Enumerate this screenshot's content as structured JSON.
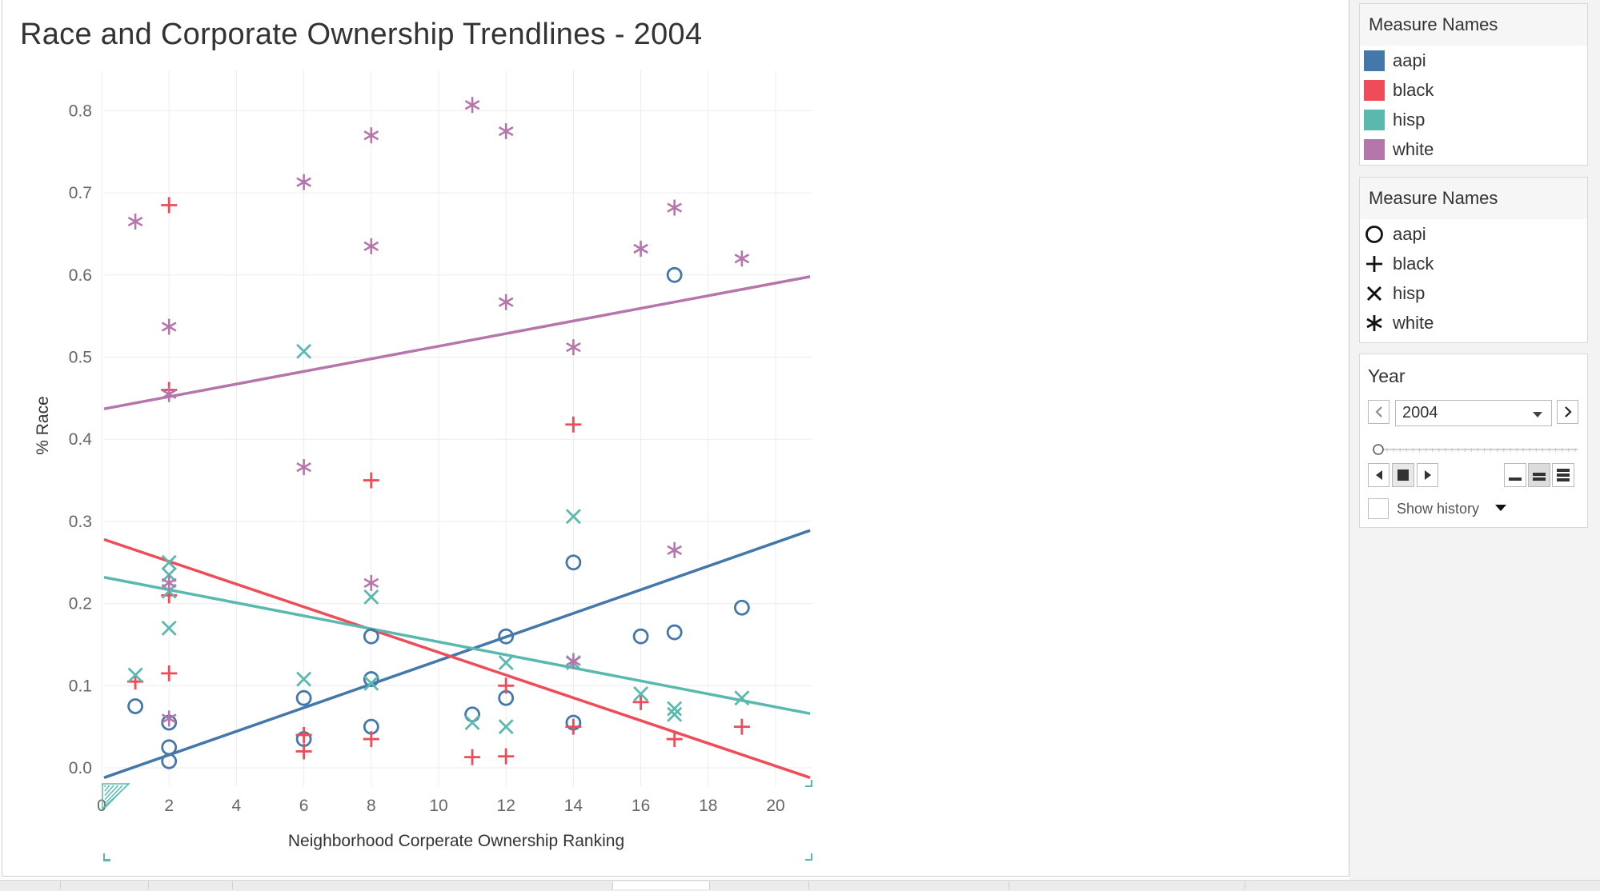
{
  "chart_data": {
    "type": "scatter",
    "title": "Race and Corporate Ownership Trendlines - 2004",
    "xlabel": "Neighborhood Corperate Ownership Ranking",
    "ylabel": "% Race",
    "xlim": [
      0,
      21
    ],
    "ylim": [
      0,
      0.85
    ],
    "xticks": [
      0,
      2,
      4,
      6,
      8,
      10,
      12,
      14,
      16,
      18,
      20
    ],
    "yticks": [
      0.0,
      0.1,
      0.2,
      0.3,
      0.4,
      0.5,
      0.6,
      0.7,
      0.8
    ],
    "xtick_labels": [
      "0",
      "2",
      "4",
      "6",
      "8",
      "10",
      "12",
      "14",
      "16",
      "18",
      "20"
    ],
    "ytick_labels": [
      "0.0",
      "0.1",
      "0.2",
      "0.3",
      "0.4",
      "0.5",
      "0.6",
      "0.7",
      "0.8"
    ],
    "grid": true,
    "series": [
      {
        "name": "aapi",
        "color": "#4477aa",
        "shape": "circle",
        "points": [
          [
            1,
            0.075
          ],
          [
            2,
            0.055
          ],
          [
            2,
            0.025
          ],
          [
            2,
            0.008
          ],
          [
            6,
            0.085
          ],
          [
            6,
            0.035
          ],
          [
            8,
            0.16
          ],
          [
            8,
            0.108
          ],
          [
            8,
            0.05
          ],
          [
            11,
            0.065
          ],
          [
            12,
            0.16
          ],
          [
            12,
            0.085
          ],
          [
            14,
            0.25
          ],
          [
            14,
            0.055
          ],
          [
            16,
            0.16
          ],
          [
            17,
            0.6
          ],
          [
            17,
            0.165
          ],
          [
            19,
            0.195
          ]
        ],
        "trend": [
          [
            0,
            -0.012
          ],
          [
            21,
            0.289
          ]
        ]
      },
      {
        "name": "black",
        "color": "#ee4c58",
        "shape": "plus",
        "points": [
          [
            1,
            0.105
          ],
          [
            2,
            0.685
          ],
          [
            2,
            0.46
          ],
          [
            2,
            0.21
          ],
          [
            2,
            0.115
          ],
          [
            6,
            0.04
          ],
          [
            6,
            0.02
          ],
          [
            8,
            0.35
          ],
          [
            8,
            0.035
          ],
          [
            11,
            0.013
          ],
          [
            12,
            0.1
          ],
          [
            12,
            0.014
          ],
          [
            14,
            0.418
          ],
          [
            14,
            0.05
          ],
          [
            16,
            0.08
          ],
          [
            17,
            0.035
          ],
          [
            19,
            0.05
          ]
        ],
        "trend": [
          [
            0,
            0.278
          ],
          [
            21,
            -0.012
          ]
        ]
      },
      {
        "name": "hisp",
        "color": "#5ab9af",
        "shape": "x",
        "points": [
          [
            1,
            0.113
          ],
          [
            2,
            0.25
          ],
          [
            2,
            0.235
          ],
          [
            2,
            0.215
          ],
          [
            2,
            0.17
          ],
          [
            6,
            0.507
          ],
          [
            6,
            0.108
          ],
          [
            8,
            0.208
          ],
          [
            8,
            0.103
          ],
          [
            11,
            0.055
          ],
          [
            12,
            0.128
          ],
          [
            12,
            0.05
          ],
          [
            14,
            0.306
          ],
          [
            14,
            0.128
          ],
          [
            16,
            0.09
          ],
          [
            17,
            0.072
          ],
          [
            17,
            0.065
          ],
          [
            19,
            0.085
          ]
        ],
        "trend": [
          [
            0,
            0.232
          ],
          [
            21,
            0.066
          ]
        ]
      },
      {
        "name": "white",
        "color": "#b576ab",
        "shape": "asterisk",
        "points": [
          [
            1,
            0.665
          ],
          [
            2,
            0.537
          ],
          [
            2,
            0.455
          ],
          [
            2,
            0.225
          ],
          [
            2,
            0.06
          ],
          [
            6,
            0.713
          ],
          [
            6,
            0.366
          ],
          [
            8,
            0.77
          ],
          [
            8,
            0.635
          ],
          [
            8,
            0.225
          ],
          [
            11,
            0.807
          ],
          [
            12,
            0.775
          ],
          [
            12,
            0.567
          ],
          [
            14,
            0.512
          ],
          [
            14,
            0.13
          ],
          [
            16,
            0.632
          ],
          [
            17,
            0.682
          ],
          [
            17,
            0.265
          ],
          [
            19,
            0.62
          ]
        ],
        "trend": [
          [
            0,
            0.437
          ],
          [
            21,
            0.598
          ]
        ]
      }
    ],
    "legend_placement": "right"
  },
  "legends": [
    {
      "title": "Measure Names",
      "kind": "color",
      "items": [
        {
          "label": "aapi",
          "color": "#4477aa"
        },
        {
          "label": "black",
          "color": "#ee4c58"
        },
        {
          "label": "hisp",
          "color": "#5ab9af"
        },
        {
          "label": "white",
          "color": "#b576ab"
        }
      ]
    },
    {
      "title": "Measure Names",
      "kind": "shape",
      "items": [
        {
          "label": "aapi",
          "icon": "circle-icon"
        },
        {
          "label": "black",
          "icon": "plus-icon"
        },
        {
          "label": "hisp",
          "icon": "x-icon"
        },
        {
          "label": "white",
          "icon": "asterisk-icon"
        }
      ]
    }
  ],
  "year_control": {
    "title": "Year",
    "selected": "2004",
    "slider_position": 0,
    "show_history_label": "Show history",
    "show_history_checked": false
  }
}
